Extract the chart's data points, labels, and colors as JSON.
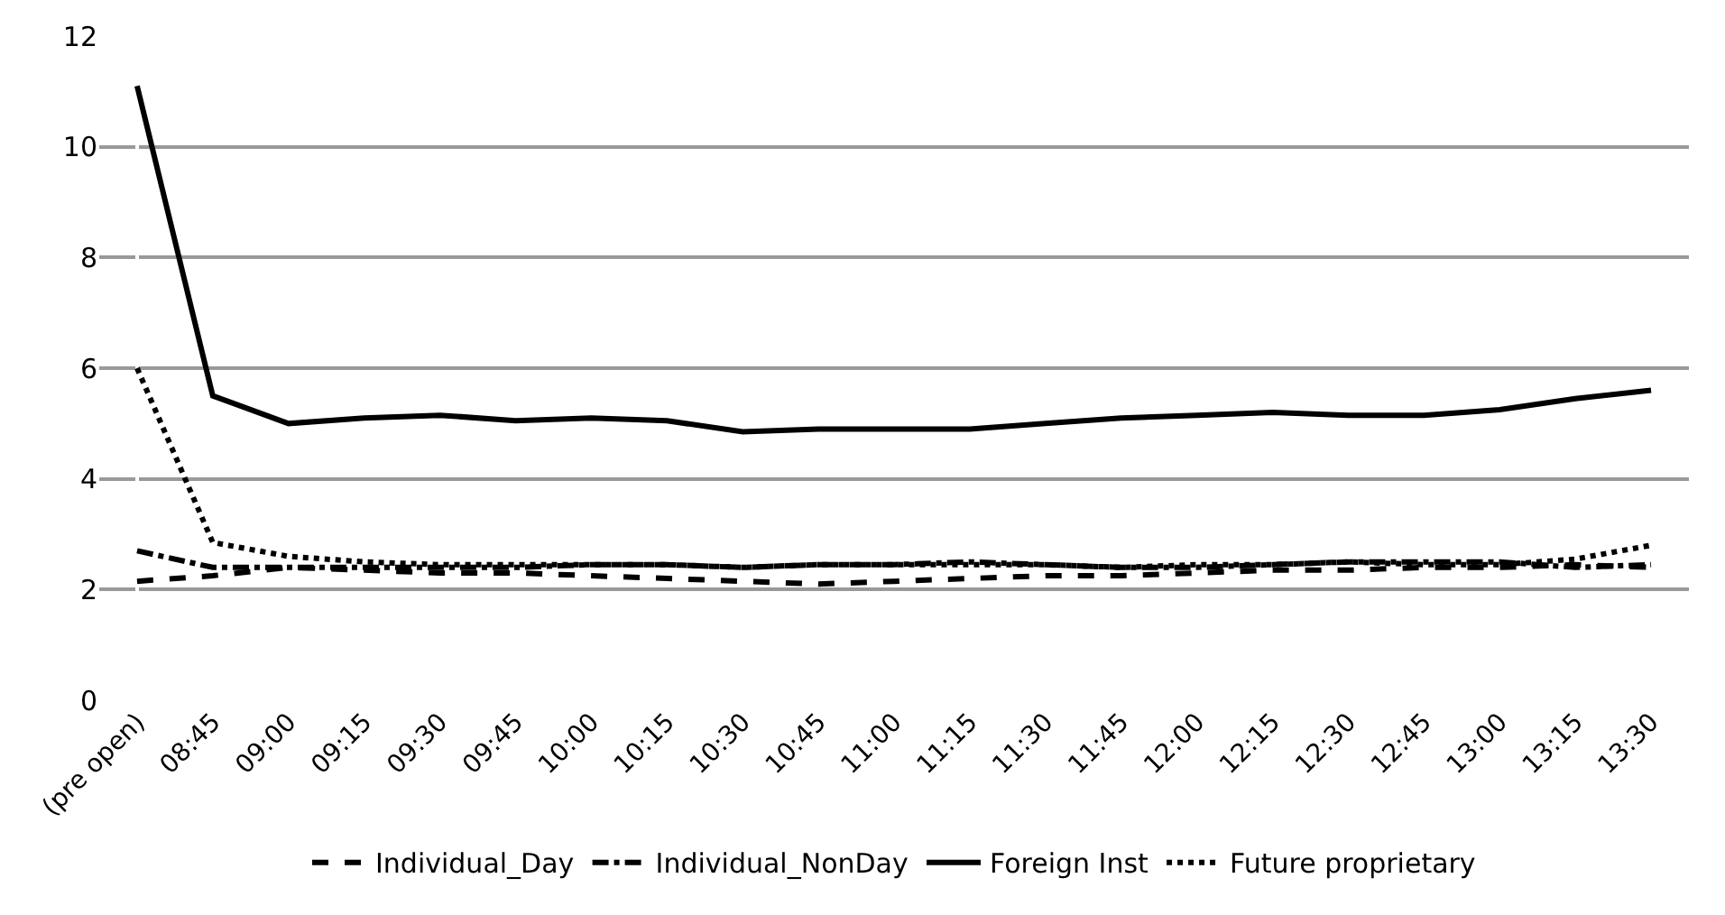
{
  "chart_data": {
    "type": "line",
    "categories": [
      "(pre open)",
      "08:45",
      "09:00",
      "09:15",
      "09:30",
      "09:45",
      "10:00",
      "10:15",
      "10:30",
      "10:45",
      "11:00",
      "11:15",
      "11:30",
      "11:45",
      "12:00",
      "12:15",
      "12:30",
      "12:45",
      "13:00",
      "13:15",
      "13:30"
    ],
    "series": [
      {
        "name": "Individual_Day",
        "color": "#000000",
        "line_style": "dashed",
        "values": [
          2.15,
          2.25,
          2.4,
          2.35,
          2.3,
          2.3,
          2.25,
          2.2,
          2.15,
          2.1,
          2.15,
          2.2,
          2.25,
          2.25,
          2.3,
          2.35,
          2.35,
          2.4,
          2.4,
          2.45,
          2.4
        ]
      },
      {
        "name": "Individual_NonDay",
        "color": "#000000",
        "line_style": "dashdot",
        "values": [
          2.7,
          2.4,
          2.4,
          2.4,
          2.4,
          2.4,
          2.45,
          2.45,
          2.4,
          2.45,
          2.45,
          2.5,
          2.45,
          2.4,
          2.4,
          2.45,
          2.5,
          2.5,
          2.5,
          2.4,
          2.45
        ]
      },
      {
        "name": "Foreign Inst",
        "color": "#000000",
        "line_style": "solid",
        "values": [
          11.1,
          5.5,
          5.0,
          5.1,
          5.15,
          5.05,
          5.1,
          5.05,
          4.85,
          4.9,
          4.9,
          4.9,
          5.0,
          5.1,
          5.15,
          5.2,
          5.15,
          5.15,
          5.25,
          5.45,
          5.6
        ]
      },
      {
        "name": "Future proprietary",
        "color": "#000000",
        "line_style": "dotted",
        "values": [
          6.0,
          2.85,
          2.6,
          2.5,
          2.45,
          2.45,
          2.45,
          2.45,
          2.4,
          2.45,
          2.45,
          2.45,
          2.45,
          2.4,
          2.45,
          2.45,
          2.5,
          2.45,
          2.45,
          2.55,
          2.8
        ]
      }
    ],
    "ylim": [
      0,
      12
    ],
    "yticks": [
      0,
      2,
      4,
      6,
      8,
      10,
      12
    ],
    "grid": "y",
    "legend": "bottom",
    "marker": "none"
  }
}
